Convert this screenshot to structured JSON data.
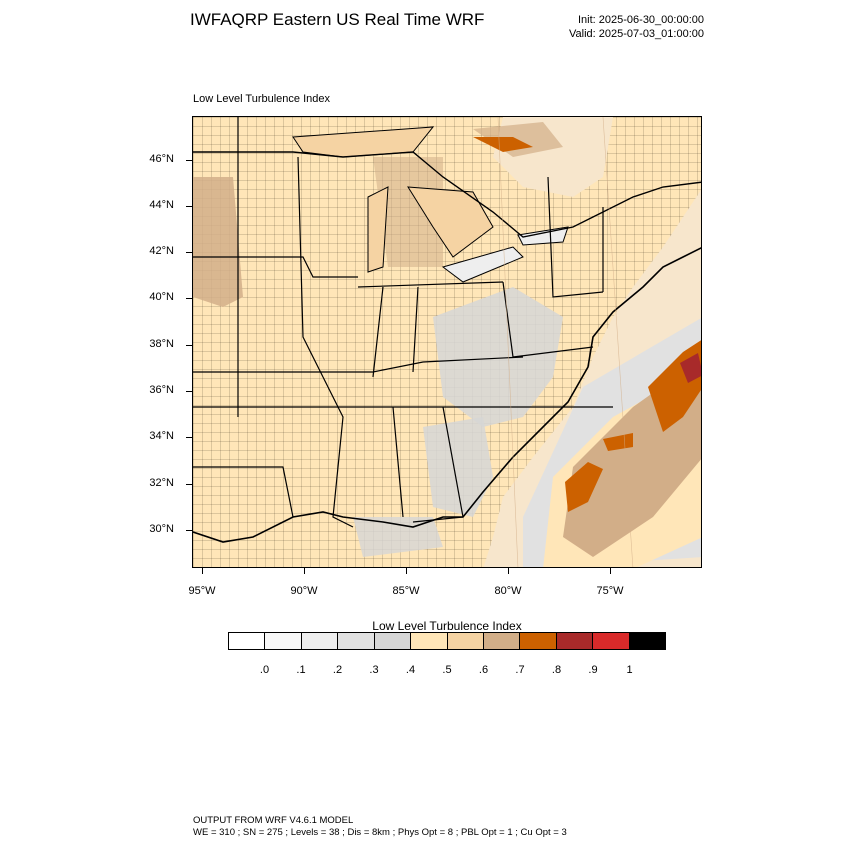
{
  "header": {
    "title": "IWFAQRP Eastern US Real Time WRF",
    "init": "Init: 2025-06-30_00:00:00",
    "valid": "Valid: 2025-07-03_01:00:00"
  },
  "map": {
    "title": "Low Level Turbulence Index",
    "lat_labels": [
      "46°N",
      "44°N",
      "42°N",
      "40°N",
      "38°N",
      "36°N",
      "34°N",
      "32°N",
      "30°N"
    ],
    "lon_labels": [
      "95°W",
      "90°W",
      "85°W",
      "80°W",
      "75°W"
    ]
  },
  "legend": {
    "title": "Low Level Turbulence Index",
    "labels": [
      ".0",
      ".1",
      ".2",
      ".3",
      ".4",
      ".5",
      ".6",
      ".7",
      ".8",
      ".9",
      "1"
    ],
    "colors": [
      "#ffffff",
      "#f7f7f7",
      "#eeeeee",
      "#e1e1e1",
      "#d6d6d6",
      "#ffe6b8",
      "#f5d3a3",
      "#d2ae88",
      "#cc6100",
      "#a82a2a",
      "#d92a2a",
      "#000000"
    ]
  },
  "footer": {
    "line1": "OUTPUT FROM WRF V4.6.1 MODEL",
    "line2": "WE = 310 ; SN = 275 ; Levels = 38 ; Dis = 8km ; Phys Opt = 8 ; PBL Opt = 1 ; Cu Opt = 3"
  }
}
